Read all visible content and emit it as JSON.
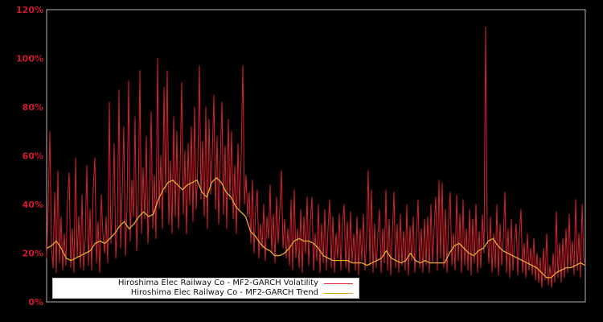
{
  "figure": {
    "background_color": "#000000",
    "plot_border_color": "#b3b3b3",
    "tick_label_color": "#d01a2e",
    "legend_background": "#ffffff",
    "legend_text_color": "#111111"
  },
  "chart_data": {
    "type": "line",
    "title": "",
    "xlabel": "",
    "ylabel": "",
    "ylim": [
      0,
      120
    ],
    "yticks": [
      0,
      20,
      40,
      60,
      80,
      100,
      120
    ],
    "ytick_labels": [
      "0%",
      "20%",
      "40%",
      "60%",
      "80%",
      "100%",
      "120%"
    ],
    "xticks_visible": false,
    "grid": false,
    "legend_position": "lower-left-inside",
    "series": [
      {
        "name": "Hiroshima Elec Railway Co - MF2-GARCH Volatility",
        "color": "#dc1e2c",
        "width": 1,
        "values": [
          18,
          40,
          70,
          22,
          14,
          45,
          12,
          54,
          16,
          35,
          13,
          28,
          15,
          42,
          53,
          14,
          30,
          12,
          59,
          18,
          35,
          14,
          44,
          13,
          26,
          56,
          15,
          38,
          13,
          47,
          59,
          16,
          33,
          12,
          44,
          28,
          20,
          35,
          16,
          82,
          24,
          40,
          65,
          18,
          32,
          87,
          22,
          45,
          72,
          19,
          38,
          91,
          25,
          50,
          35,
          76,
          21,
          42,
          95,
          28,
          55,
          34,
          68,
          24,
          46,
          78,
          30,
          52,
          26,
          100,
          38,
          60,
          30,
          88,
          45,
          95,
          32,
          58,
          28,
          76,
          35,
          70,
          30,
          55,
          90,
          36,
          62,
          28,
          65,
          40,
          72,
          33,
          80,
          38,
          56,
          97,
          42,
          66,
          35,
          80,
          30,
          75,
          44,
          60,
          85,
          38,
          68,
          32,
          58,
          82,
          36,
          64,
          30,
          75,
          42,
          70,
          34,
          56,
          28,
          65,
          38,
          60,
          97,
          40,
          52,
          35,
          45,
          24,
          50,
          20,
          38,
          46,
          18,
          32,
          22,
          40,
          17,
          35,
          26,
          48,
          20,
          36,
          16,
          43,
          24,
          38,
          54,
          22,
          34,
          18,
          30,
          15,
          42,
          13,
          46,
          18,
          30,
          14,
          38,
          12,
          35,
          20,
          43,
          15,
          33,
          43,
          13,
          28,
          17,
          40,
          12,
          32,
          16,
          38,
          13,
          30,
          42,
          14,
          35,
          12,
          28,
          18,
          36,
          13,
          32,
          40,
          14,
          33,
          12,
          37,
          16,
          28,
          13,
          35,
          11,
          30,
          17,
          36,
          13,
          26,
          54,
          15,
          46,
          12,
          32,
          14,
          28,
          38,
          12,
          30,
          16,
          46,
          13,
          34,
          11,
          28,
          45,
          14,
          32,
          12,
          36,
          15,
          29,
          13,
          40,
          11,
          31,
          17,
          35,
          12,
          27,
          42,
          14,
          30,
          12,
          34,
          15,
          35,
          12,
          40,
          16,
          30,
          43,
          13,
          50,
          18,
          49,
          14,
          38,
          12,
          33,
          45,
          15,
          28,
          13,
          44,
          17,
          36,
          12,
          42,
          15,
          30,
          13,
          38,
          11,
          34,
          16,
          40,
          12,
          29,
          14,
          36,
          20,
          113,
          30,
          16,
          35,
          12,
          28,
          14,
          40,
          11,
          32,
          15,
          26,
          45,
          12,
          30,
          10,
          34,
          13,
          25,
          32,
          11,
          28,
          38,
          12,
          24,
          10,
          28,
          13,
          22,
          11,
          26,
          9,
          20,
          8,
          18,
          6,
          22,
          9,
          28,
          7,
          15,
          6,
          20,
          8,
          37,
          10,
          24,
          8,
          26,
          10,
          30,
          12,
          36,
          14,
          25,
          11,
          42,
          13,
          28,
          10,
          40,
          18,
          15
        ]
      },
      {
        "name": "Hiroshima Elec Railway Co - MF2-GARCH Trend",
        "color": "#d9a62b",
        "width": 1.4,
        "values": [
          22,
          23,
          25,
          22,
          18,
          17,
          18,
          19,
          20,
          21,
          24,
          25,
          24,
          26,
          28,
          31,
          33,
          30,
          32,
          35,
          37,
          35,
          36,
          42,
          46,
          49,
          50,
          48,
          46,
          48,
          49,
          50,
          45,
          43,
          49,
          51,
          49,
          45,
          43,
          39,
          37,
          35,
          29,
          27,
          24,
          22,
          21,
          19,
          19,
          20,
          22,
          25,
          26,
          25,
          25,
          24,
          22,
          19,
          18,
          17,
          17,
          17,
          17,
          16,
          16,
          16,
          15,
          16,
          17,
          18,
          21,
          18,
          17,
          16,
          17,
          20,
          17,
          16,
          17,
          16,
          16,
          16,
          16,
          20,
          23,
          24,
          22,
          20,
          19,
          21,
          22,
          25,
          26,
          23,
          21,
          20,
          19,
          18,
          17,
          16,
          15,
          14,
          12,
          10,
          10,
          12,
          13,
          14,
          14,
          15,
          16,
          15
        ]
      }
    ]
  },
  "legend": {
    "items": [
      {
        "label": "Hiroshima Elec Railway Co - MF2-GARCH Volatility"
      },
      {
        "label": "Hiroshima Elec Railway Co - MF2-GARCH Trend"
      }
    ]
  }
}
